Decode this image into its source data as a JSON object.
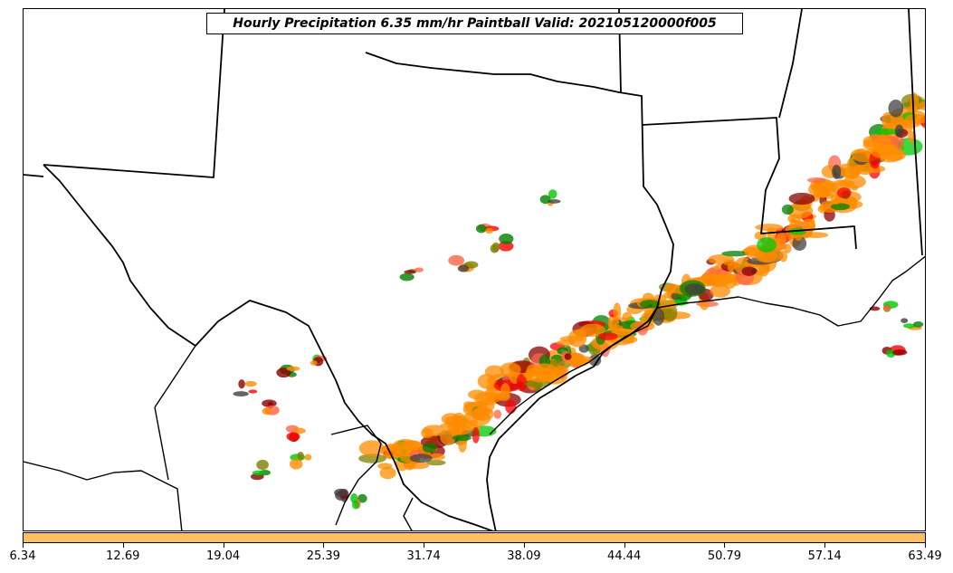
{
  "title": "Hourly Precipitation 6.35 mm/hr Paintball Valid: 202105120000f005",
  "colorbar": {
    "color": "#ffc064",
    "ticks": [
      "6.34",
      "12.69",
      "19.04",
      "25.39",
      "31.74",
      "38.09",
      "44.44",
      "50.79",
      "57.14",
      "63.49"
    ]
  },
  "legend_colors": [
    "#ff8c00",
    "#ff0000",
    "#8b0000",
    "#00c800",
    "#008000",
    "#808000",
    "#404040",
    "#ff6347"
  ]
}
